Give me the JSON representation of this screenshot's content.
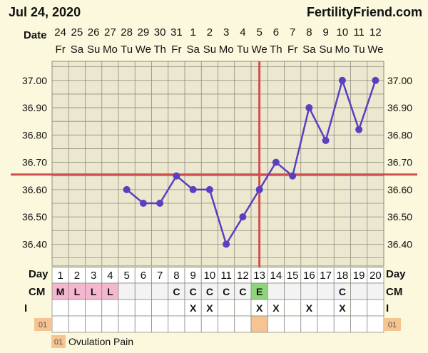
{
  "header": {
    "date": "Jul 24, 2020",
    "brand": "FertilityFriend.com"
  },
  "labels": {
    "date_row": "Date",
    "day_row": "Day",
    "cm_row": "CM",
    "i_row": "I",
    "pain_badge": "01"
  },
  "legend": {
    "code": "01",
    "text": "Ovulation Pain"
  },
  "colors": {
    "background": "#fcf8dd",
    "grid_fill": "#ece8cf",
    "grid_line": "#8e8c80",
    "line": "#5a3fc0",
    "coverline": "#d24e4e",
    "menses_cell": "#f4b7cf",
    "peak_cell": "#8fd47a",
    "pain_cell": "#f6c491"
  },
  "chart_data": {
    "type": "line",
    "dates": [
      "24",
      "25",
      "26",
      "27",
      "28",
      "29",
      "30",
      "31",
      "1",
      "2",
      "3",
      "4",
      "5",
      "6",
      "7",
      "8",
      "9",
      "10",
      "11",
      "12"
    ],
    "weekdays": [
      "Fr",
      "Sa",
      "Su",
      "Mo",
      "Tu",
      "We",
      "Th",
      "Fr",
      "Sa",
      "Su",
      "Mo",
      "Tu",
      "We",
      "Th",
      "Fr",
      "Sa",
      "Su",
      "Mo",
      "Tu",
      "We"
    ],
    "days": [
      "1",
      "2",
      "3",
      "4",
      "5",
      "6",
      "7",
      "8",
      "9",
      "10",
      "11",
      "12",
      "13",
      "14",
      "15",
      "16",
      "17",
      "18",
      "19",
      "20"
    ],
    "series": [
      {
        "values": [
          null,
          null,
          null,
          null,
          36.6,
          36.55,
          36.55,
          36.65,
          36.6,
          36.6,
          36.4,
          36.5,
          36.6,
          36.7,
          36.65,
          36.9,
          36.78,
          37.0,
          36.82,
          37.0
        ]
      }
    ],
    "yticks": [
      "37.00",
      "36.90",
      "36.80",
      "36.70",
      "36.60",
      "36.50",
      "36.40"
    ],
    "ylim": [
      36.32,
      37.07
    ],
    "coverline": 36.655,
    "ovulation_day": "13",
    "cervical_mucus": [
      "M",
      "L",
      "L",
      "L",
      "",
      "",
      "",
      "C",
      "C",
      "C",
      "C",
      "C",
      "E",
      "",
      "",
      "",
      "",
      "C",
      "",
      ""
    ],
    "intercourse": [
      "",
      "",
      "",
      "",
      "",
      "",
      "",
      "",
      "X",
      "X",
      "",
      "",
      "X",
      "X",
      "",
      "X",
      "",
      "X",
      "",
      ""
    ],
    "ovulation_pain_days": [
      "13"
    ],
    "grid": true
  }
}
